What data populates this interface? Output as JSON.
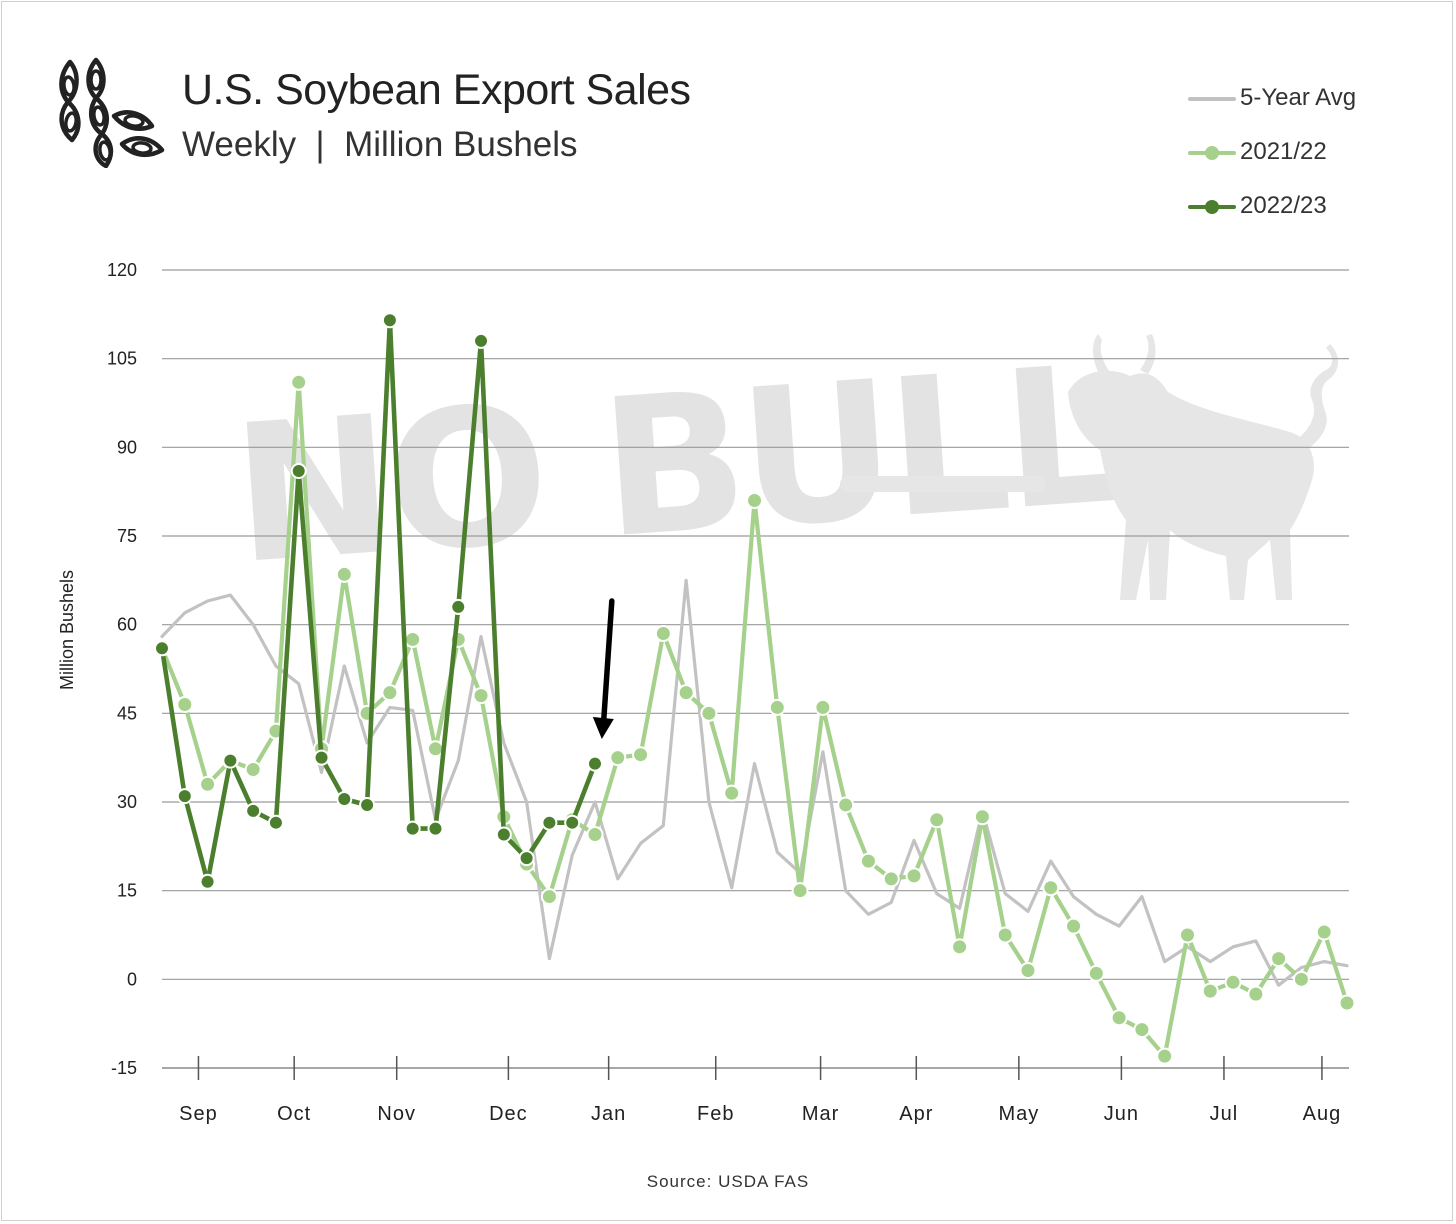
{
  "header": {
    "title": "U.S. Soybean Export Sales",
    "subtitle": "Weekly  |  Million Bushels"
  },
  "watermark": "NO BULL",
  "source": "Source: USDA FAS",
  "colors": {
    "avg": "#c2c2c2",
    "y2122": "#a6d18c",
    "y2223": "#4c7f2d",
    "grid": "#9a9a9a",
    "arrow": "#000000"
  },
  "icons": {
    "logo": "soybean-pods-icon",
    "annotation": "down-arrow-icon"
  },
  "legend": [
    {
      "name": "5-Year Avg",
      "marker": false,
      "color": "#c2c2c2"
    },
    {
      "name": "2021/22",
      "marker": true,
      "color": "#a6d18c"
    },
    {
      "name": "2022/23",
      "marker": true,
      "color": "#4c7f2d"
    }
  ],
  "chart_data": {
    "type": "line",
    "title": "U.S. Soybean Export Sales",
    "subtitle": "Weekly | Million Bushels",
    "ylabel": "Million Bushels",
    "xlabel": "",
    "ylim": [
      -15,
      120
    ],
    "yticks": [
      -15,
      0,
      15,
      30,
      45,
      60,
      75,
      90,
      105,
      120
    ],
    "xlim": [
      0,
      52
    ],
    "month_labels": [
      {
        "label": "Sep",
        "x": 1.6
      },
      {
        "label": "Oct",
        "x": 5.8
      },
      {
        "label": "Nov",
        "x": 10.3
      },
      {
        "label": "Dec",
        "x": 15.2
      },
      {
        "label": "Jan",
        "x": 19.6
      },
      {
        "label": "Feb",
        "x": 24.3
      },
      {
        "label": "Mar",
        "x": 28.9
      },
      {
        "label": "Apr",
        "x": 33.1
      },
      {
        "label": "May",
        "x": 37.6
      },
      {
        "label": "Jun",
        "x": 42.1
      },
      {
        "label": "Jul",
        "x": 46.6
      },
      {
        "label": "Aug",
        "x": 50.9
      }
    ],
    "grid": true,
    "legend_position": "top-right",
    "annotation": {
      "type": "arrow",
      "x": 19.3,
      "y_from": 64,
      "y_to": 41
    },
    "series": [
      {
        "name": "5-Year Avg",
        "markers": false,
        "values": [
          58,
          62,
          64,
          65,
          60,
          53,
          50,
          35,
          53,
          40,
          46,
          45.5,
          27,
          37,
          58,
          40,
          30,
          3.5,
          21,
          30,
          17,
          23,
          26,
          67.5,
          30,
          15.5,
          36.5,
          21.5,
          18,
          38.5,
          15,
          11,
          13,
          23.5,
          14.5,
          12,
          28.5,
          14.5,
          11.5,
          20,
          14,
          11,
          9,
          14,
          3,
          5.5,
          3,
          5.5,
          6.5,
          -1,
          2,
          3,
          2.3
        ]
      },
      {
        "name": "2021/22",
        "markers": true,
        "values": [
          56,
          46.5,
          33,
          37,
          35.5,
          42,
          101,
          39,
          68.5,
          45,
          48.5,
          57.5,
          39,
          57.5,
          48,
          27.5,
          19.5,
          14,
          27,
          24.5,
          37.5,
          38,
          58.5,
          48.5,
          45,
          31.5,
          81,
          46,
          15,
          46,
          29.5,
          20,
          17,
          17.5,
          27,
          5.5,
          27.5,
          7.5,
          1.5,
          15.5,
          9,
          1,
          -6.5,
          -8.5,
          -13,
          7.5,
          -2,
          -0.5,
          -2.5,
          3.5,
          0,
          8,
          -4
        ]
      },
      {
        "name": "2022/23",
        "markers": true,
        "values": [
          56,
          31,
          16.5,
          37,
          28.5,
          26.5,
          86,
          37.5,
          30.5,
          29.5,
          111.5,
          25.5,
          25.5,
          63,
          108,
          24.5,
          20.5,
          26.5,
          26.5,
          36.5
        ]
      }
    ]
  }
}
